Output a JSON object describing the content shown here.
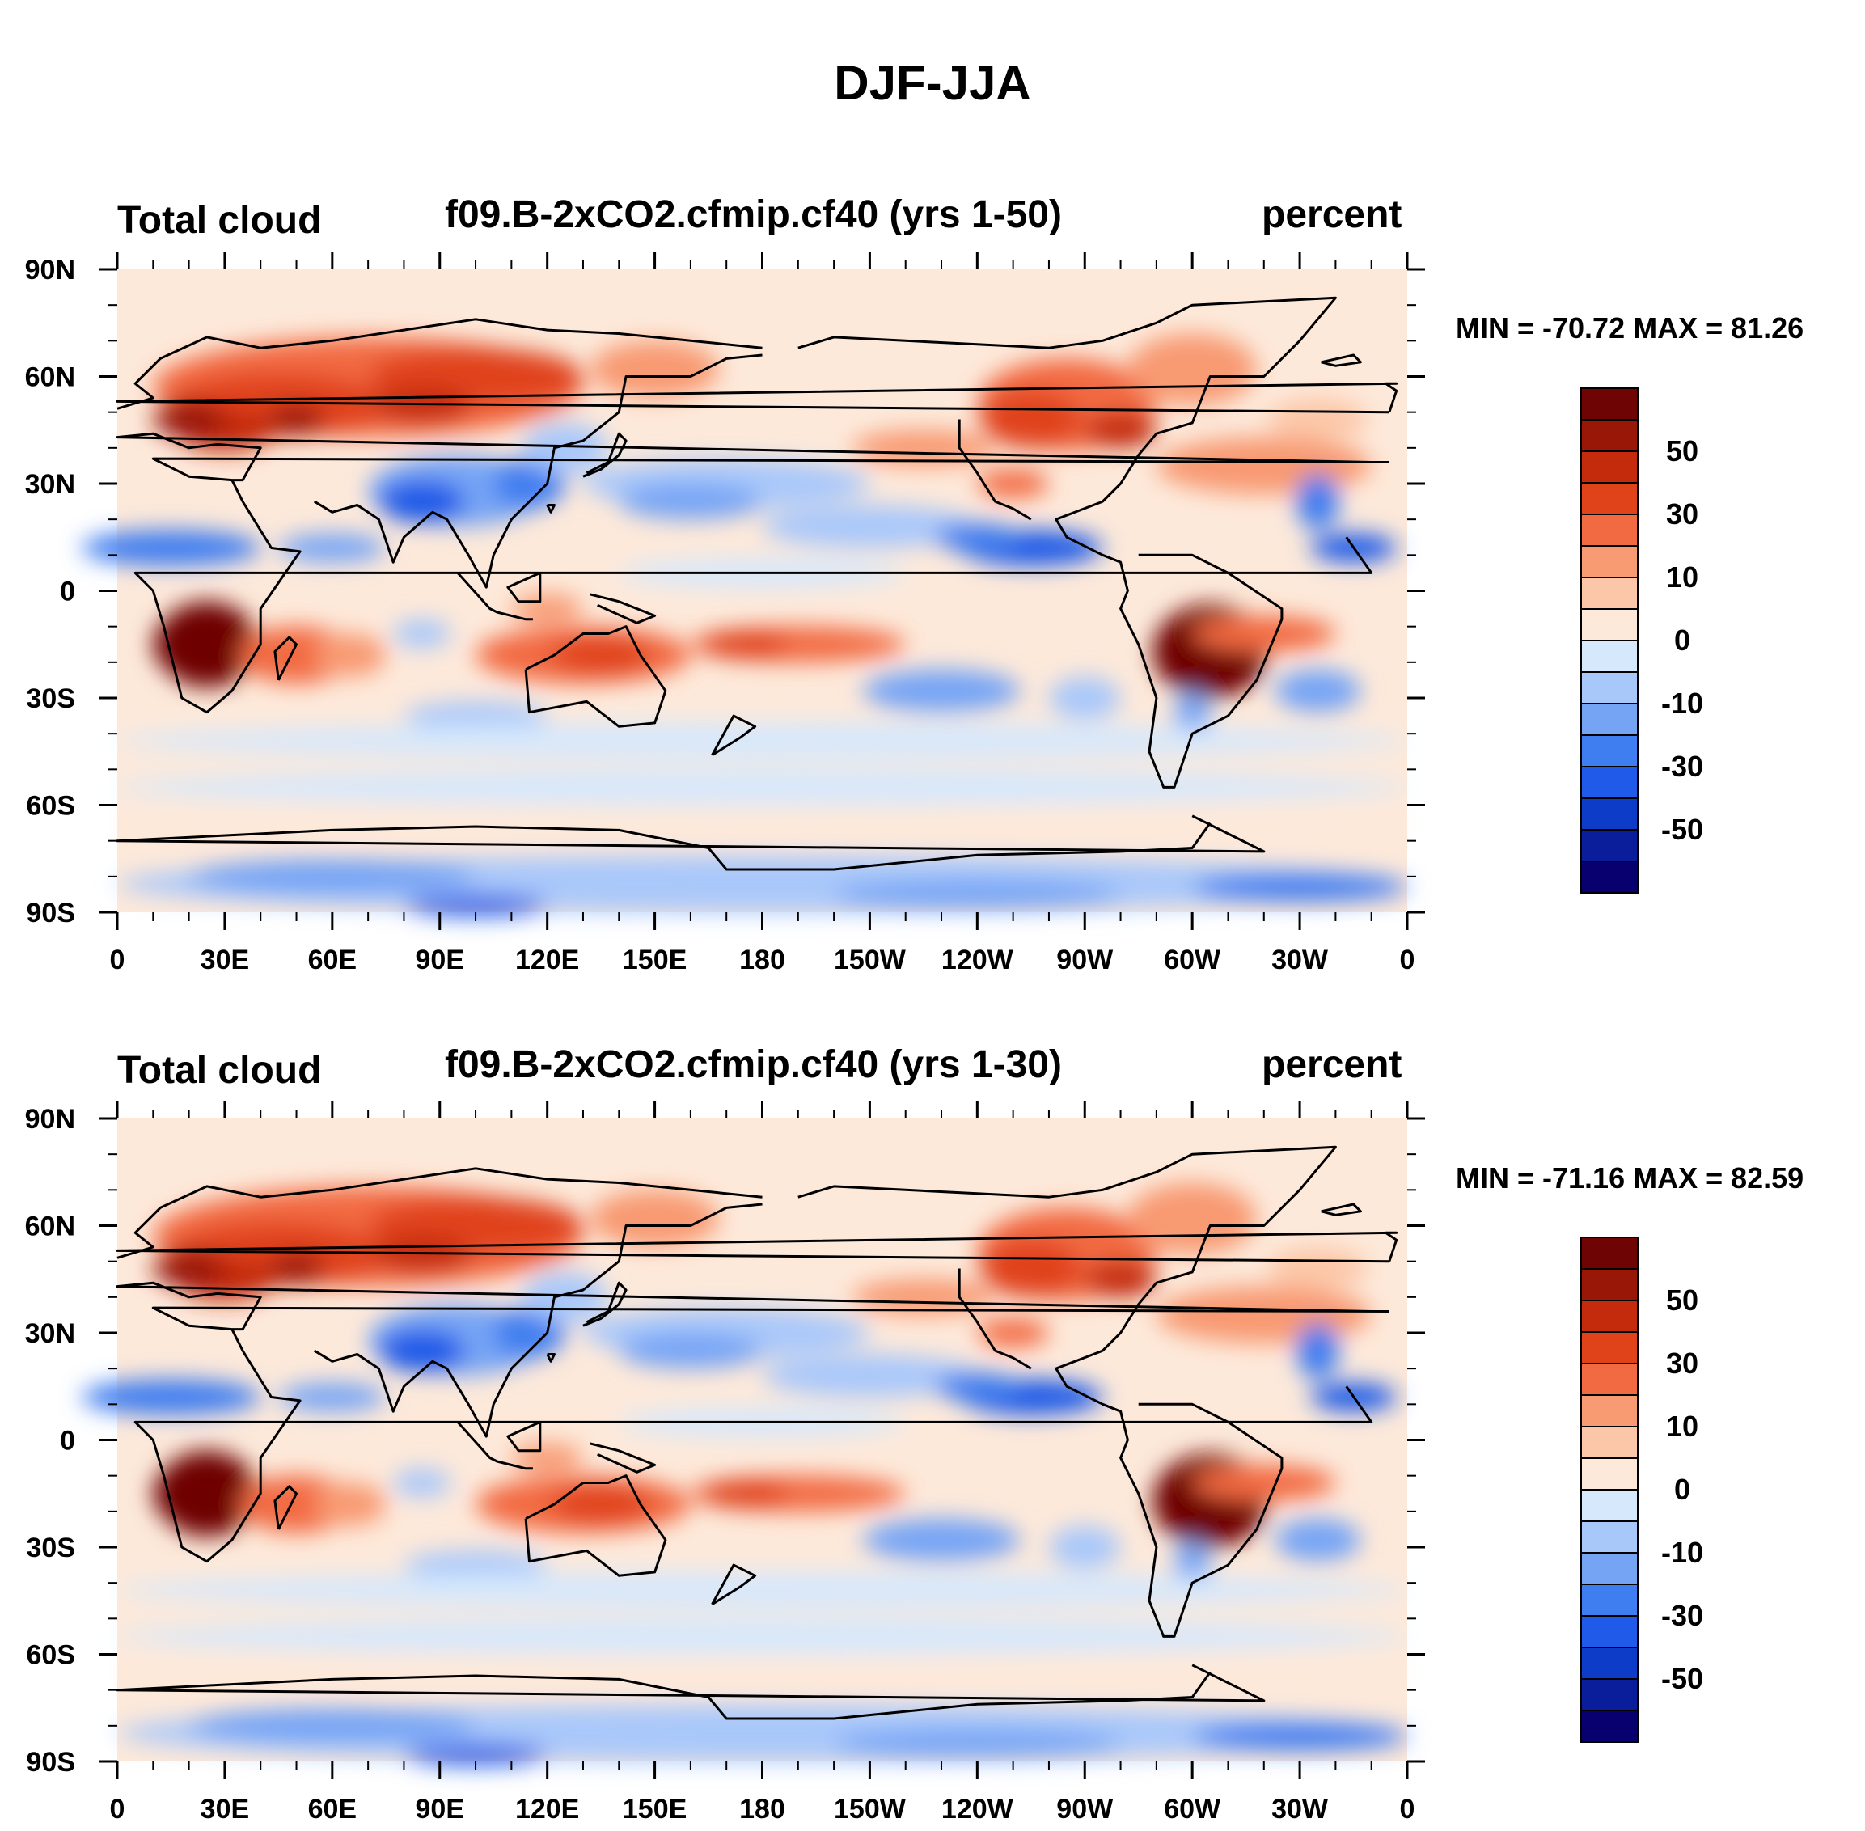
{
  "figure_title": "DJF-JJA",
  "colors": {
    "levels": [
      "#08006e",
      "#0a1e9b",
      "#0c3cc8",
      "#1f5ae8",
      "#3f7ef0",
      "#76a4f5",
      "#a9c8fa",
      "#d6e8fc",
      "#fde9da",
      "#fcc7a8",
      "#f89a72",
      "#f26a42",
      "#e0431a",
      "#c42a0c",
      "#981707",
      "#6e0404"
    ]
  },
  "panels": [
    {
      "left_title": "Total cloud",
      "center_title": "f09.B-2xCO2.cfmip.cf40 (yrs 1-50)",
      "right_title": "percent",
      "minmax": "MIN = -70.72 MAX =  81.26"
    },
    {
      "left_title": "Total cloud",
      "center_title": "f09.B-2xCO2.cfmip.cf40 (yrs 1-30)",
      "right_title": "percent",
      "minmax": "MIN = -71.16 MAX =  82.59"
    }
  ],
  "chart_data": [
    {
      "type": "heatmap",
      "title": "f09.B-2xCO2.cfmip.cf40 (yrs 1-50)",
      "variable": "Total cloud",
      "units": "percent",
      "season_diff": "DJF-JJA",
      "min": -70.72,
      "max": 81.26,
      "x_ticks": [
        "0",
        "30E",
        "60E",
        "90E",
        "120E",
        "150E",
        "180",
        "150W",
        "120W",
        "90W",
        "60W",
        "30W",
        "0"
      ],
      "y_ticks": [
        "90N",
        "60N",
        "30N",
        "0",
        "30S",
        "60S",
        "90S"
      ],
      "colorbar_labels": [
        "50",
        "30",
        "10",
        "0",
        "-10",
        "-30",
        "-50"
      ]
    },
    {
      "type": "heatmap",
      "title": "f09.B-2xCO2.cfmip.cf40 (yrs 1-30)",
      "variable": "Total cloud",
      "units": "percent",
      "season_diff": "DJF-JJA",
      "min": -71.16,
      "max": 82.59,
      "x_ticks": [
        "0",
        "30E",
        "60E",
        "90E",
        "120E",
        "150E",
        "180",
        "150W",
        "120W",
        "90W",
        "60W",
        "30W",
        "0"
      ],
      "y_ticks": [
        "90N",
        "60N",
        "30N",
        "0",
        "30S",
        "60S",
        "90S"
      ],
      "colorbar_labels": [
        "50",
        "30",
        "10",
        "0",
        "-10",
        "-30",
        "-50"
      ]
    }
  ]
}
